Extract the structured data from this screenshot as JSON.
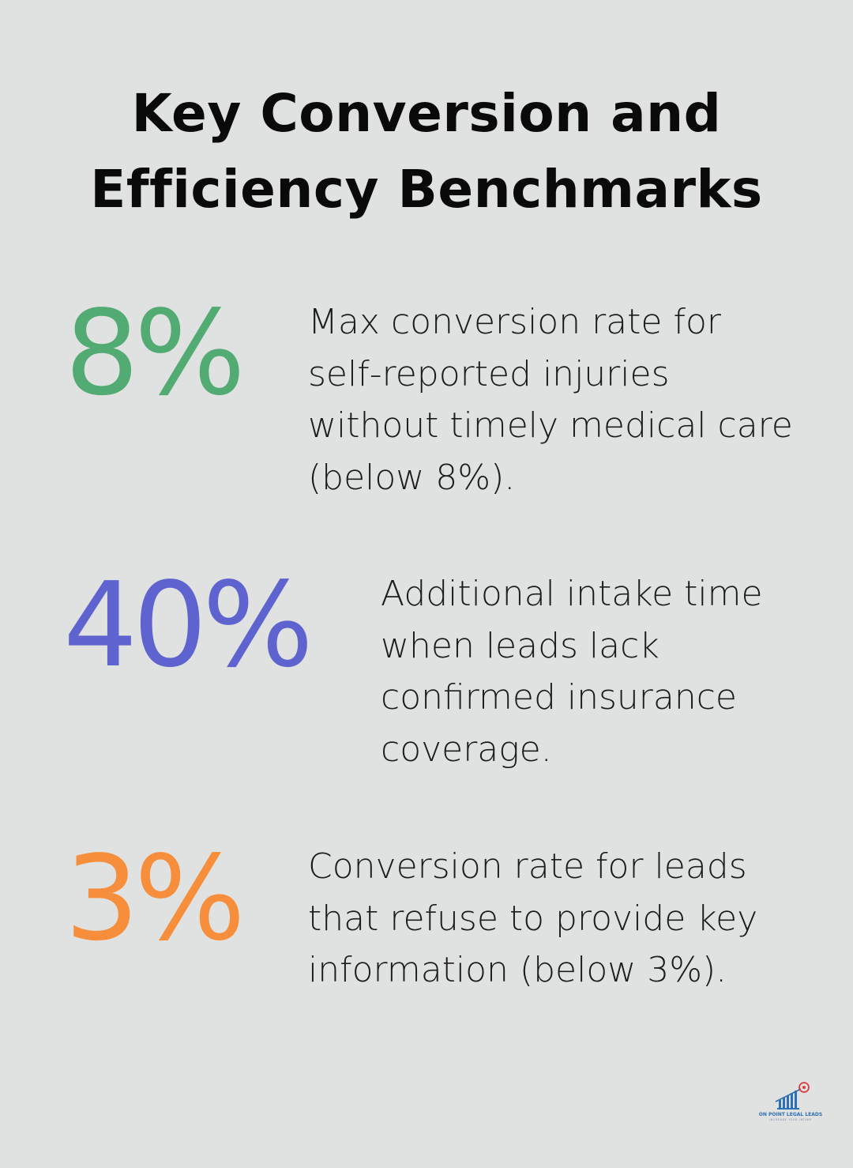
{
  "title": {
    "line1": "Key Conversion and",
    "line2": "Efficiency Benchmarks"
  },
  "stats": [
    {
      "value": "8%",
      "color": "#52ab72",
      "description_lines": [
        "Max conversion rate for",
        "self-reported injuries",
        "without timely medical care",
        "(below 8%)."
      ]
    },
    {
      "value": "40%",
      "color": "#5e63cf",
      "description_lines": [
        "Additional intake time",
        "when leads lack",
        "confirmed insurance",
        "coverage."
      ]
    },
    {
      "value": "3%",
      "color": "#f68e3c",
      "description_lines": [
        "Conversion rate for leads",
        "that refuse to provide key",
        "information (below 3%)."
      ]
    }
  ],
  "logo": {
    "name": "ON POINT LEGAL LEADS",
    "tagline": "INCREASE YOUR INTAKE",
    "colors": {
      "primary": "#2f6fb5",
      "accent": "#e23a3a"
    }
  }
}
